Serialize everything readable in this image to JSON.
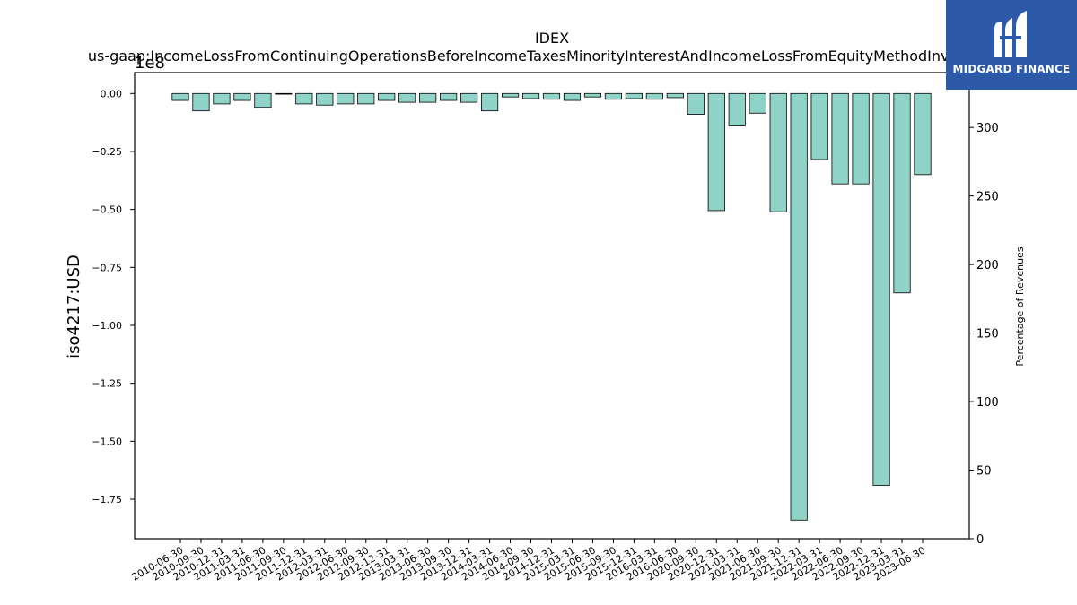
{
  "chart_data": {
    "type": "bar",
    "title": "IDEX",
    "subtitle": "us-gaap:IncomeLossFromContinuingOperationsBeforeIncomeTaxesMinorityInterestAndIncomeLossFromEquityMethodInvestments",
    "ylabel": "iso4217:USD",
    "ylabel_right": "Percentage of Revenues",
    "scale_label": "1e8",
    "ylim": [
      -1.92,
      0.09
    ],
    "ylim_right": [
      0,
      340
    ],
    "left_ticks": [
      0.0,
      -0.25,
      -0.5,
      -0.75,
      -1.0,
      -1.25,
      -1.5,
      -1.75
    ],
    "left_tick_labels": [
      "0.00",
      "−0.25",
      "−0.50",
      "−0.75",
      "−1.00",
      "−1.25",
      "−1.50",
      "−1.75"
    ],
    "right_ticks": [
      0,
      50,
      100,
      150,
      200,
      250,
      300
    ],
    "categories": [
      "2010-06-30",
      "2010-09-30",
      "2010-12-31",
      "2011-03-31",
      "2011-06-30",
      "2011-09-30",
      "2011-12-31",
      "2012-03-31",
      "2012-06-30",
      "2012-09-30",
      "2012-12-31",
      "2013-03-31",
      "2013-06-30",
      "2013-09-30",
      "2013-12-31",
      "2014-03-31",
      "2014-06-30",
      "2014-09-30",
      "2014-12-31",
      "2015-03-31",
      "2015-06-30",
      "2015-09-30",
      "2015-12-31",
      "2016-03-31",
      "2016-06-30",
      "2020-09-30",
      "2020-12-31",
      "2021-03-31",
      "2021-06-30",
      "2021-09-30",
      "2021-12-31",
      "2022-03-31",
      "2022-06-30",
      "2022-09-30",
      "2022-12-31",
      "2023-03-31",
      "2023-06-30"
    ],
    "values": [
      -0.03,
      -0.075,
      -0.045,
      -0.03,
      -0.06,
      -0.003,
      -0.045,
      -0.05,
      -0.045,
      -0.045,
      -0.03,
      -0.038,
      -0.038,
      -0.03,
      -0.038,
      -0.075,
      -0.015,
      -0.022,
      -0.025,
      -0.03,
      -0.015,
      -0.025,
      -0.022,
      -0.025,
      -0.018,
      -0.09,
      -0.505,
      -0.14,
      -0.085,
      -0.51,
      -1.84,
      -0.285,
      -0.39,
      -0.39,
      -1.69,
      -0.86,
      -0.35
    ],
    "bar_color": "#8fd3c8",
    "grid": false
  },
  "logo": {
    "text": "MIDGARD FINANCE",
    "color": "#2c5aa8"
  }
}
